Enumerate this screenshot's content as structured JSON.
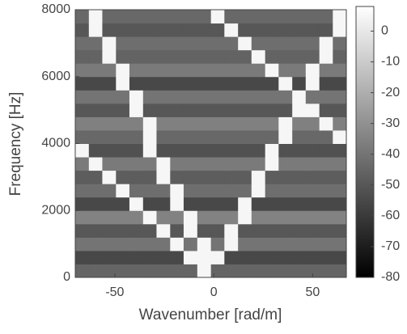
{
  "chart_data": {
    "type": "heatmap",
    "xlabel": "Wavenumber [rad/m]",
    "ylabel": "Frequency [Hz]",
    "xlim": [
      -70,
      67
    ],
    "ylim": [
      0,
      8000
    ],
    "xticks": [
      -50,
      0,
      50
    ],
    "yticks": [
      0,
      2000,
      4000,
      6000,
      8000
    ],
    "clim": [
      -80,
      8
    ],
    "cticks": [
      0,
      -10,
      -20,
      -30,
      -40,
      -50,
      -60,
      -70,
      -80
    ],
    "colormap": "gray",
    "x": [
      -66.6,
      -59.7,
      -52.9,
      -46.0,
      -39.2,
      -32.3,
      -25.5,
      -18.6,
      -11.8,
      -4.9,
      2.0,
      8.8,
      15.7,
      22.5,
      29.4,
      36.2,
      43.1,
      49.9,
      56.8,
      63.6
    ],
    "y": [
      200,
      600,
      1000,
      1400,
      1800,
      2200,
      2600,
      3000,
      3400,
      3800,
      4200,
      4600,
      5000,
      5400,
      5800,
      6200,
      6600,
      7000,
      7400,
      7800
    ],
    "z": [
      [
        -45,
        -45,
        -45,
        -45,
        -45,
        -45,
        -45,
        -45,
        -45,
        5,
        -45,
        -45,
        -45,
        -45,
        -45,
        -45,
        -45,
        -45,
        -45,
        -45
      ],
      [
        -55,
        -55,
        -55,
        -55,
        -55,
        -55,
        -55,
        -55,
        5,
        5,
        5,
        -55,
        -55,
        -55,
        -55,
        -55,
        -55,
        -55,
        -55,
        -55
      ],
      [
        -40,
        -40,
        -40,
        -40,
        -40,
        -40,
        -40,
        5,
        -40,
        5,
        -40,
        5,
        -40,
        -40,
        -40,
        -40,
        -40,
        -40,
        -40,
        -40
      ],
      [
        -50,
        -50,
        -50,
        -50,
        -50,
        -50,
        5,
        -50,
        5,
        -50,
        -50,
        5,
        -50,
        -50,
        -50,
        -50,
        -50,
        -50,
        -50,
        -50
      ],
      [
        -35,
        -35,
        -35,
        -35,
        -35,
        5,
        -35,
        -35,
        5,
        -35,
        -35,
        -35,
        5,
        -35,
        -35,
        -35,
        -35,
        -35,
        -35,
        -35
      ],
      [
        -55,
        -55,
        -55,
        -55,
        5,
        -55,
        -55,
        5,
        -55,
        -55,
        -55,
        -55,
        5,
        -55,
        -55,
        -55,
        -55,
        -55,
        -55,
        -55
      ],
      [
        -42,
        -42,
        -42,
        5,
        -42,
        -42,
        -42,
        5,
        -42,
        -42,
        -42,
        -42,
        -42,
        5,
        -42,
        -42,
        -42,
        -42,
        -42,
        -42
      ],
      [
        -48,
        -48,
        5,
        -48,
        -48,
        -48,
        5,
        -48,
        -48,
        -48,
        -48,
        -48,
        -48,
        5,
        -48,
        -48,
        -48,
        -48,
        -48,
        -48
      ],
      [
        -38,
        5,
        -38,
        -38,
        -38,
        -38,
        5,
        -38,
        -38,
        -38,
        -38,
        -38,
        -38,
        -38,
        5,
        -38,
        -38,
        -38,
        -38,
        -38
      ],
      [
        5,
        -52,
        -52,
        -52,
        -52,
        5,
        -52,
        -52,
        -52,
        -52,
        -52,
        -52,
        -52,
        -52,
        5,
        -52,
        -52,
        -52,
        -52,
        -52
      ],
      [
        -44,
        -44,
        -44,
        -44,
        -44,
        5,
        -44,
        -44,
        -44,
        -44,
        -44,
        -44,
        -44,
        -44,
        -44,
        5,
        -44,
        -44,
        -44,
        5
      ],
      [
        -36,
        -36,
        -36,
        -36,
        -36,
        5,
        -36,
        -36,
        -36,
        -36,
        -36,
        -36,
        -36,
        -36,
        -36,
        5,
        -36,
        -36,
        5,
        -36
      ],
      [
        -50,
        -50,
        -50,
        -50,
        5,
        -50,
        -50,
        -50,
        -50,
        -50,
        -50,
        -50,
        -50,
        -50,
        -50,
        -50,
        5,
        5,
        -50,
        -50
      ],
      [
        -40,
        -40,
        -40,
        -40,
        5,
        -40,
        -40,
        -40,
        -40,
        -40,
        -40,
        -40,
        -40,
        -40,
        -40,
        -40,
        5,
        -40,
        -40,
        -40
      ],
      [
        -55,
        -55,
        -55,
        5,
        -55,
        -55,
        -55,
        -55,
        -55,
        -55,
        -55,
        -55,
        -55,
        -55,
        -55,
        5,
        -55,
        5,
        -55,
        -55
      ],
      [
        -38,
        -38,
        -38,
        5,
        -38,
        -38,
        -38,
        -38,
        -38,
        -38,
        -38,
        -38,
        -38,
        -38,
        5,
        -38,
        -38,
        5,
        -38,
        -38
      ],
      [
        -46,
        -46,
        5,
        -46,
        -46,
        -46,
        -46,
        -46,
        -46,
        -46,
        -46,
        -46,
        -46,
        5,
        -46,
        -46,
        -46,
        -46,
        5,
        -46
      ],
      [
        -42,
        -42,
        5,
        -42,
        -42,
        -42,
        -42,
        -42,
        -42,
        -42,
        -42,
        -42,
        5,
        -42,
        -42,
        -42,
        -42,
        -42,
        5,
        -42
      ],
      [
        -50,
        5,
        -50,
        -50,
        -50,
        -50,
        -50,
        -50,
        -50,
        -50,
        -50,
        5,
        -50,
        -50,
        -50,
        -50,
        -50,
        -50,
        -50,
        5
      ],
      [
        -44,
        5,
        -44,
        -44,
        -44,
        -44,
        -44,
        -44,
        -44,
        -44,
        5,
        -44,
        -44,
        -44,
        -44,
        -44,
        -44,
        -44,
        -44,
        5
      ]
    ]
  }
}
